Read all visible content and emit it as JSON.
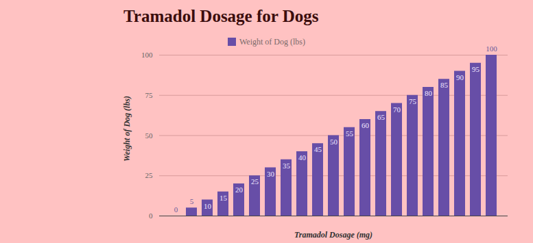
{
  "chart_data": {
    "type": "bar",
    "title": "Tramadol Dosage for Dogs",
    "x_label": "Tramadol Dosage (mg)",
    "y_label": "Weight of Dog (lbs)",
    "categories": [
      null,
      null,
      null,
      null,
      null,
      null,
      null,
      null,
      null,
      null,
      null,
      null,
      null,
      null,
      null,
      null,
      null,
      null,
      null,
      null,
      null
    ],
    "series": [
      {
        "name": "Weight of Dog (lbs)",
        "color": "#674ea7",
        "values": [
          0,
          5,
          10,
          15,
          20,
          25,
          30,
          35,
          40,
          45,
          50,
          55,
          60,
          65,
          70,
          75,
          80,
          85,
          90,
          95,
          100
        ]
      }
    ],
    "ylim": [
      0,
      100
    ],
    "yticks": [
      0,
      25,
      50,
      75,
      100
    ],
    "grid": true,
    "legend": "top",
    "data_labels": true,
    "tick_labels": "y"
  }
}
